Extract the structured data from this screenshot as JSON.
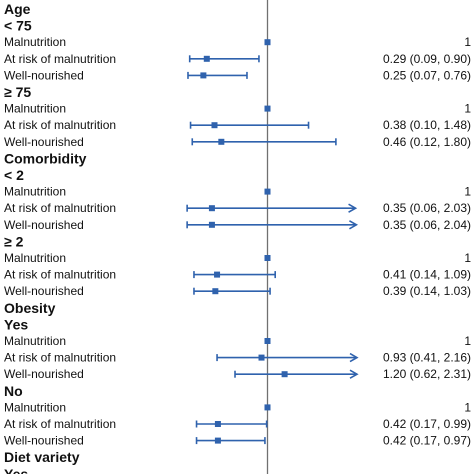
{
  "chart_data": {
    "type": "forest",
    "title": "",
    "xlabel": "",
    "ylabel": "",
    "x_scale": "linear",
    "reference_line": 1,
    "xlim": [
      0,
      2.1
    ],
    "colors": {
      "marker": "#2f62ad",
      "reference_line": "#707070",
      "text": "#111111"
    },
    "rows": [
      {
        "kind": "group",
        "text": "Age"
      },
      {
        "kind": "subgroup",
        "text": "< 75"
      },
      {
        "kind": "estimate",
        "label": "Malnutrition",
        "est": 1,
        "text": "1"
      },
      {
        "kind": "estimate",
        "label": "At risk of malnutrition",
        "est": 0.29,
        "lo": 0.09,
        "hi": 0.9,
        "text": "0.29 (0.09, 0.90)"
      },
      {
        "kind": "estimate",
        "label": "Well-nourished",
        "est": 0.25,
        "lo": 0.07,
        "hi": 0.76,
        "text": "0.25 (0.07, 0.76)"
      },
      {
        "kind": "subgroup",
        "text": "≥ 75"
      },
      {
        "kind": "estimate",
        "label": "Malnutrition",
        "est": 1,
        "text": "1"
      },
      {
        "kind": "estimate",
        "label": "At risk of malnutrition",
        "est": 0.38,
        "lo": 0.1,
        "hi": 1.48,
        "text": "0.38 (0.10, 1.48)"
      },
      {
        "kind": "estimate",
        "label": "Well-nourished",
        "est": 0.46,
        "lo": 0.12,
        "hi": 1.8,
        "text": "0.46 (0.12, 1.80)"
      },
      {
        "kind": "group",
        "text": "Comorbidity"
      },
      {
        "kind": "subgroup",
        "text": "< 2"
      },
      {
        "kind": "estimate",
        "label": "Malnutrition",
        "est": 1,
        "text": "1"
      },
      {
        "kind": "estimate",
        "label": "At risk of malnutrition",
        "est": 0.35,
        "lo": 0.06,
        "hi": 2.03,
        "arrow": true,
        "text": "0.35 (0.06, 2.03)"
      },
      {
        "kind": "estimate",
        "label": "Well-nourished",
        "est": 0.35,
        "lo": 0.06,
        "hi": 2.04,
        "arrow": true,
        "text": "0.35 (0.06, 2.04)"
      },
      {
        "kind": "subgroup",
        "text": "≥ 2"
      },
      {
        "kind": "estimate",
        "label": "Malnutrition",
        "est": 1,
        "text": "1"
      },
      {
        "kind": "estimate",
        "label": "At risk of malnutrition",
        "est": 0.41,
        "lo": 0.14,
        "hi": 1.09,
        "text": "0.41 (0.14, 1.09)"
      },
      {
        "kind": "estimate",
        "label": "Well-nourished",
        "est": 0.39,
        "lo": 0.14,
        "hi": 1.03,
        "text": "0.39 (0.14, 1.03)"
      },
      {
        "kind": "group",
        "text": "Obesity"
      },
      {
        "kind": "subgroup",
        "text": "Yes"
      },
      {
        "kind": "estimate",
        "label": "Malnutrition",
        "est": 1,
        "text": "1"
      },
      {
        "kind": "estimate",
        "label": "At risk of malnutrition",
        "est": 0.93,
        "lo": 0.41,
        "hi": 2.16,
        "arrow": true,
        "text": "0.93 (0.41, 2.16)"
      },
      {
        "kind": "estimate",
        "label": "Well-nourished",
        "est": 1.2,
        "lo": 0.62,
        "hi": 2.31,
        "arrow": true,
        "text": "1.20 (0.62, 2.31)"
      },
      {
        "kind": "subgroup",
        "text": "No"
      },
      {
        "kind": "estimate",
        "label": "Malnutrition",
        "est": 1,
        "text": "1"
      },
      {
        "kind": "estimate",
        "label": "At risk of malnutrition",
        "est": 0.42,
        "lo": 0.17,
        "hi": 0.99,
        "text": "0.42 (0.17, 0.99)"
      },
      {
        "kind": "estimate",
        "label": "Well-nourished",
        "est": 0.42,
        "lo": 0.17,
        "hi": 0.97,
        "text": "0.42 (0.17, 0.97)"
      },
      {
        "kind": "group",
        "text": "Diet variety"
      },
      {
        "kind": "subgroup",
        "text": "Yes"
      }
    ]
  }
}
